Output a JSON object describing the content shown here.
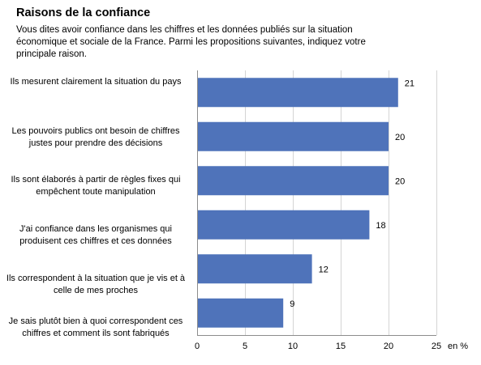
{
  "chart_data": {
    "type": "bar",
    "orientation": "horizontal",
    "title": "Raisons de la confiance",
    "subtitle": "Vous dites avoir confiance dans les chiffres et les données publiés sur la situation économique et sociale de la France. Parmi les propositions suivantes, indiquez votre principale raison.",
    "categories": [
      "Ils mesurent clairement la situation du pays",
      "Les pouvoirs publics ont besoin de chiffres justes pour prendre des décisions",
      "Ils sont élaborés à partir de règles fixes qui empêchent toute manipulation",
      "J'ai confiance dans les organismes qui produisent ces chiffres et ces données",
      "Ils correspondent à la situation que je vis et à celle de mes proches",
      "Je sais plutôt bien à quoi correspondent ces chiffres et comment ils sont fabriqués"
    ],
    "values": [
      21,
      20,
      20,
      18,
      12,
      9
    ],
    "xlim": [
      0,
      25
    ],
    "xticks": [
      "0",
      "5",
      "10",
      "15",
      "20",
      "25"
    ],
    "xlabel": "en %",
    "bar_color": "#4F73BA",
    "grid": true
  }
}
